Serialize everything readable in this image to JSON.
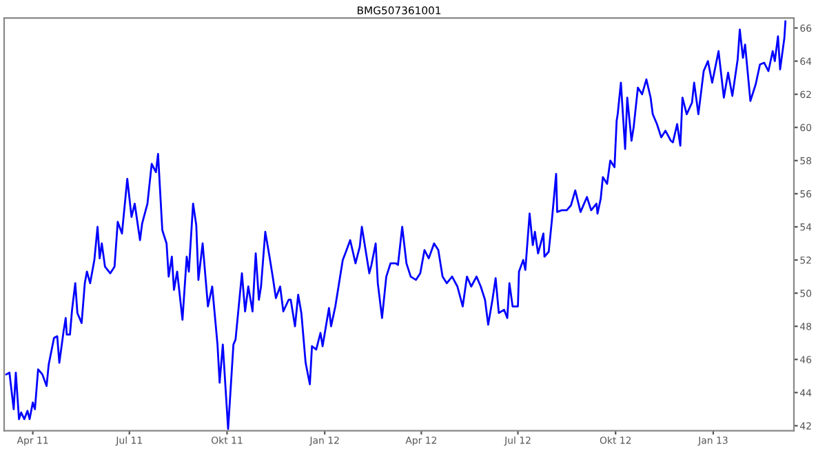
{
  "chart_data": {
    "type": "line",
    "title": "BMG507361001",
    "x": [
      "2011-03-07",
      "2011-03-10",
      "2011-03-14",
      "2011-03-16",
      "2011-03-19",
      "2011-03-21",
      "2011-03-24",
      "2011-03-27",
      "2011-03-29",
      "2011-04-01",
      "2011-04-03",
      "2011-04-06",
      "2011-04-10",
      "2011-04-14",
      "2011-04-16",
      "2011-04-21",
      "2011-04-24",
      "2011-04-26",
      "2011-04-30",
      "2011-05-02",
      "2011-05-03",
      "2011-05-06",
      "2011-05-08",
      "2011-05-11",
      "2011-05-13",
      "2011-05-17",
      "2011-05-20",
      "2011-05-22",
      "2011-05-25",
      "2011-05-29",
      "2011-06-01",
      "2011-06-03",
      "2011-06-05",
      "2011-06-08",
      "2011-06-13",
      "2011-06-17",
      "2011-06-20",
      "2011-06-24",
      "2011-06-29",
      "2011-07-03",
      "2011-07-06",
      "2011-07-11",
      "2011-07-13",
      "2011-07-18",
      "2011-07-22",
      "2011-07-26",
      "2011-07-28",
      "2011-08-01",
      "2011-08-05",
      "2011-08-07",
      "2011-08-10",
      "2011-08-12",
      "2011-08-15",
      "2011-08-20",
      "2011-08-24",
      "2011-08-26",
      "2011-08-30",
      "2011-09-02",
      "2011-09-04",
      "2011-09-08",
      "2011-09-13",
      "2011-09-17",
      "2011-09-22",
      "2011-09-24",
      "2011-09-27",
      "2011-10-02",
      "2011-10-07",
      "2011-10-09",
      "2011-10-15",
      "2011-10-18",
      "2011-10-21",
      "2011-10-25",
      "2011-10-28",
      "2011-10-31",
      "2011-11-02",
      "2011-11-06",
      "2011-11-10",
      "2011-11-13",
      "2011-11-16",
      "2011-11-20",
      "2011-11-23",
      "2011-11-28",
      "2011-11-30",
      "2011-12-04",
      "2011-12-07",
      "2011-12-10",
      "2011-12-14",
      "2011-12-18",
      "2011-12-20",
      "2011-12-24",
      "2011-12-28",
      "2011-12-30",
      "2012-01-05",
      "2012-01-07",
      "2012-01-11",
      "2012-01-18",
      "2012-01-21",
      "2012-01-25",
      "2012-01-30",
      "2012-02-03",
      "2012-02-05",
      "2012-02-12",
      "2012-02-14",
      "2012-02-18",
      "2012-02-20",
      "2012-02-24",
      "2012-02-28",
      "2012-03-03",
      "2012-03-08",
      "2012-03-10",
      "2012-03-14",
      "2012-03-18",
      "2012-03-22",
      "2012-03-27",
      "2012-03-31",
      "2012-04-04",
      "2012-04-08",
      "2012-04-13",
      "2012-04-17",
      "2012-04-21",
      "2012-04-25",
      "2012-04-30",
      "2012-05-05",
      "2012-05-10",
      "2012-05-14",
      "2012-05-18",
      "2012-05-23",
      "2012-05-27",
      "2012-05-31",
      "2012-06-03",
      "2012-06-07",
      "2012-06-10",
      "2012-06-13",
      "2012-06-18",
      "2012-06-21",
      "2012-06-23",
      "2012-06-26",
      "2012-07-01",
      "2012-07-02",
      "2012-07-06",
      "2012-07-08",
      "2012-07-12",
      "2012-07-15",
      "2012-07-17",
      "2012-07-20",
      "2012-07-25",
      "2012-07-26",
      "2012-07-30",
      "2012-08-02",
      "2012-08-06",
      "2012-08-07",
      "2012-08-11",
      "2012-08-16",
      "2012-08-20",
      "2012-08-24",
      "2012-08-29",
      "2012-09-04",
      "2012-09-08",
      "2012-09-13",
      "2012-09-14",
      "2012-09-17",
      "2012-09-19",
      "2012-09-23",
      "2012-09-26",
      "2012-09-30",
      "2012-10-02",
      "2012-10-03",
      "2012-10-06",
      "2012-10-10",
      "2012-10-12",
      "2012-10-16",
      "2012-10-18",
      "2012-10-22",
      "2012-10-26",
      "2012-10-30",
      "2012-11-03",
      "2012-11-05",
      "2012-11-09",
      "2012-11-13",
      "2012-11-17",
      "2012-11-22",
      "2012-11-24",
      "2012-11-28",
      "2012-12-01",
      "2012-12-03",
      "2012-12-07",
      "2012-12-12",
      "2012-12-14",
      "2012-12-18",
      "2012-12-23",
      "2012-12-27",
      "2012-12-31",
      "2013-01-06",
      "2013-01-11",
      "2013-01-15",
      "2013-01-19",
      "2013-01-24",
      "2013-01-26",
      "2013-01-29",
      "2013-01-31",
      "2013-02-05",
      "2013-02-10",
      "2013-02-14",
      "2013-02-18",
      "2013-02-22",
      "2013-02-26",
      "2013-02-28",
      "2013-03-03",
      "2013-03-05",
      "2013-03-09",
      "2013-03-10"
    ],
    "series": [
      {
        "color": "#0000ff",
        "values": [
          45.1,
          45.2,
          43.0,
          45.2,
          42.4,
          42.8,
          42.4,
          42.9,
          42.4,
          43.4,
          43.0,
          45.4,
          45.1,
          44.4,
          45.7,
          47.3,
          47.4,
          45.8,
          47.7,
          48.5,
          47.5,
          47.5,
          49.0,
          50.6,
          48.8,
          48.2,
          50.6,
          51.3,
          50.6,
          52.0,
          54.0,
          52.1,
          53.0,
          51.6,
          51.2,
          51.6,
          54.3,
          53.6,
          56.9,
          54.6,
          55.4,
          53.2,
          54.2,
          55.4,
          57.8,
          57.3,
          58.4,
          53.8,
          53.0,
          51.0,
          52.2,
          50.2,
          51.3,
          48.4,
          52.2,
          51.3,
          55.4,
          54.1,
          50.8,
          53.0,
          49.2,
          50.4,
          46.9,
          44.6,
          46.9,
          41.8,
          46.9,
          47.2,
          51.2,
          48.9,
          50.4,
          48.9,
          52.4,
          49.6,
          50.4,
          53.7,
          52.2,
          51.0,
          49.7,
          50.4,
          48.9,
          49.6,
          49.6,
          48.0,
          49.9,
          48.8,
          45.8,
          44.5,
          46.8,
          46.6,
          47.6,
          46.8,
          49.1,
          48.0,
          49.2,
          52.0,
          52.5,
          53.2,
          51.8,
          52.8,
          54.0,
          51.2,
          51.7,
          53.0,
          50.6,
          48.5,
          51.0,
          51.8,
          51.8,
          51.7,
          54.0,
          51.8,
          51.0,
          50.8,
          51.2,
          52.6,
          52.1,
          53.0,
          52.6,
          51.0,
          50.6,
          51.0,
          50.4,
          49.2,
          51.0,
          50.4,
          51.0,
          50.4,
          49.6,
          48.1,
          49.6,
          50.9,
          48.8,
          49.0,
          48.5,
          50.6,
          49.2,
          49.2,
          51.3,
          52.0,
          51.4,
          54.8,
          52.9,
          53.7,
          52.4,
          53.6,
          52.2,
          52.5,
          54.4,
          57.2,
          54.9,
          55.0,
          55.0,
          55.3,
          56.2,
          54.9,
          55.8,
          55.0,
          55.4,
          54.8,
          55.7,
          57.0,
          56.6,
          58.0,
          57.6,
          60.4,
          60.8,
          62.7,
          58.7,
          61.8,
          59.2,
          60.0,
          62.4,
          62.0,
          62.9,
          61.8,
          60.8,
          60.2,
          59.4,
          59.8,
          59.2,
          59.1,
          60.2,
          58.9,
          61.8,
          60.8,
          61.5,
          62.7,
          60.8,
          63.4,
          64.0,
          62.7,
          64.6,
          61.8,
          63.3,
          61.9,
          64.1,
          65.9,
          64.2,
          65.0,
          61.6,
          62.6,
          63.8,
          63.9,
          63.4,
          64.6,
          64.0,
          65.5,
          63.5,
          65.4,
          66.4
        ]
      }
    ],
    "xlim": [
      "2011-03-05",
      "2013-03-18"
    ],
    "xticks": [
      {
        "value": "2011-04-01",
        "label": "Apr 11"
      },
      {
        "value": "2011-07-01",
        "label": "Jul 11"
      },
      {
        "value": "2011-10-01",
        "label": "Okt 11"
      },
      {
        "value": "2012-01-01",
        "label": "Jan 12"
      },
      {
        "value": "2012-04-01",
        "label": "Apr 12"
      },
      {
        "value": "2012-07-01",
        "label": "Jul 12"
      },
      {
        "value": "2012-10-01",
        "label": "Okt 12"
      },
      {
        "value": "2013-01-01",
        "label": "Jan 13"
      }
    ],
    "ylim": [
      41.7,
      66.6
    ],
    "yticks": [
      42,
      44,
      46,
      48,
      50,
      52,
      54,
      56,
      58,
      60,
      62,
      64,
      66
    ],
    "grid": false,
    "legend": false,
    "marker": "none",
    "line_style": "solid"
  }
}
